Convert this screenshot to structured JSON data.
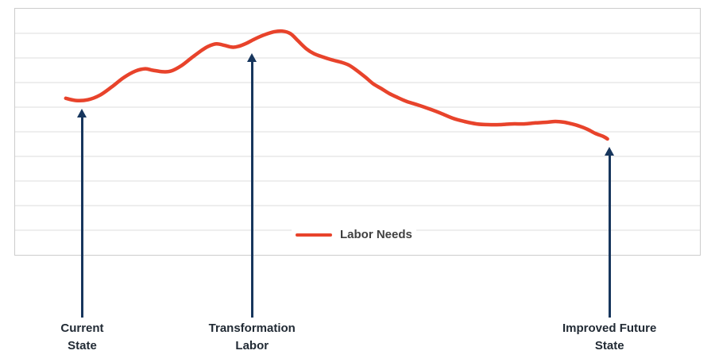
{
  "chart_data": {
    "type": "line",
    "axes_visible": false,
    "x_range": [
      0,
      100
    ],
    "y_range": [
      0,
      100
    ],
    "grid": {
      "horizontal_lines": 9,
      "color": "#DCDCDC"
    },
    "plot_border_color": "#CCCCCC",
    "background": "#FFFFFF",
    "series": [
      {
        "name": "Labor Needs",
        "color": "#E8432B",
        "points": [
          [
            7.4,
            63.6
          ],
          [
            8.9,
            62.7
          ],
          [
            10.6,
            63.0
          ],
          [
            12.4,
            64.9
          ],
          [
            14.1,
            68.2
          ],
          [
            15.9,
            72.1
          ],
          [
            17.6,
            74.7
          ],
          [
            19.0,
            75.6
          ],
          [
            20.1,
            75.0
          ],
          [
            21.6,
            74.4
          ],
          [
            22.8,
            74.7
          ],
          [
            24.3,
            76.9
          ],
          [
            25.7,
            79.9
          ],
          [
            27.1,
            82.8
          ],
          [
            28.2,
            84.7
          ],
          [
            29.4,
            85.7
          ],
          [
            30.6,
            85.1
          ],
          [
            31.7,
            84.4
          ],
          [
            32.6,
            84.7
          ],
          [
            33.8,
            86.0
          ],
          [
            35.0,
            87.7
          ],
          [
            36.3,
            89.3
          ],
          [
            37.8,
            90.6
          ],
          [
            39.0,
            90.9
          ],
          [
            40.2,
            89.9
          ],
          [
            41.3,
            87.0
          ],
          [
            42.5,
            83.8
          ],
          [
            43.6,
            81.8
          ],
          [
            44.8,
            80.5
          ],
          [
            46.3,
            79.2
          ],
          [
            47.7,
            78.2
          ],
          [
            48.8,
            77.0
          ],
          [
            50.0,
            74.7
          ],
          [
            51.2,
            72.1
          ],
          [
            52.3,
            69.5
          ],
          [
            53.5,
            67.5
          ],
          [
            54.6,
            65.6
          ],
          [
            55.8,
            64.0
          ],
          [
            57.2,
            62.3
          ],
          [
            58.7,
            61.0
          ],
          [
            60.4,
            59.4
          ],
          [
            62.2,
            57.5
          ],
          [
            63.9,
            55.5
          ],
          [
            65.6,
            54.2
          ],
          [
            67.4,
            53.2
          ],
          [
            69.1,
            52.9
          ],
          [
            70.8,
            52.9
          ],
          [
            72.6,
            53.2
          ],
          [
            74.3,
            53.2
          ],
          [
            76.0,
            53.6
          ],
          [
            77.8,
            53.9
          ],
          [
            78.9,
            54.2
          ],
          [
            80.1,
            53.9
          ],
          [
            81.3,
            53.2
          ],
          [
            82.4,
            52.3
          ],
          [
            83.6,
            51.0
          ],
          [
            84.7,
            49.4
          ],
          [
            85.9,
            48.1
          ],
          [
            86.5,
            47.1
          ]
        ]
      }
    ],
    "legend": {
      "entries": [
        "Labor Needs"
      ],
      "position": "bottom-center-inside"
    },
    "legend_text_color": "#404040",
    "annotations": {
      "arrow_color": "#17365D",
      "label_color": "#222B35",
      "items": [
        {
          "id": "current-state",
          "label": "Current\nState",
          "x": 9.8,
          "tip_y": 59.4
        },
        {
          "id": "transformation-labor",
          "label": "Transformation\nLabor",
          "x": 34.6,
          "tip_y": 82.0
        },
        {
          "id": "improved-future-state",
          "label": "Improved Future\nState",
          "x": 86.8,
          "tip_y": 43.9
        }
      ]
    }
  }
}
